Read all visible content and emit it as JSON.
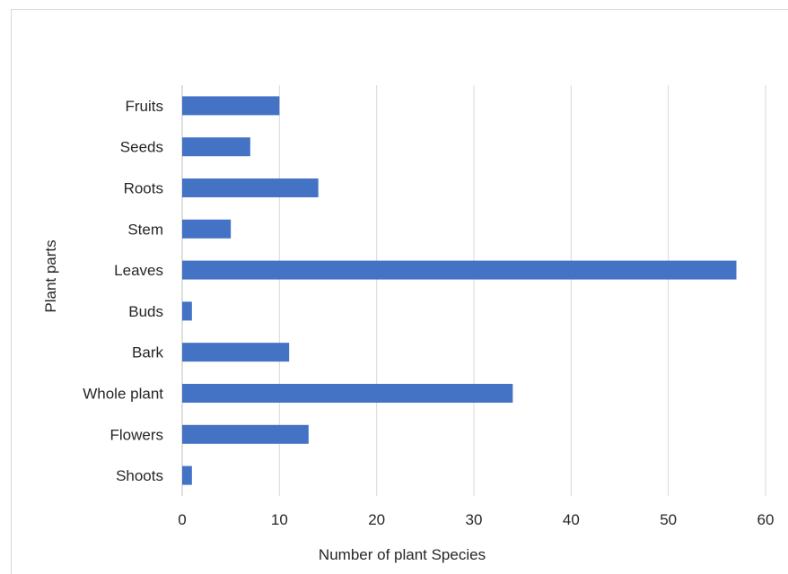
{
  "chart_data": {
    "type": "bar",
    "orientation": "horizontal",
    "categories": [
      "Fruits",
      "Seeds",
      "Roots",
      "Stem",
      "Leaves",
      "Buds",
      "Bark",
      "Whole plant",
      "Flowers",
      "Shoots"
    ],
    "values": [
      10,
      7,
      14,
      5,
      57,
      1,
      11,
      34,
      13,
      1
    ],
    "xlabel": "Number of plant Species",
    "ylabel": "Plant parts",
    "xlim": [
      0,
      60
    ],
    "xticks": [
      0,
      10,
      20,
      30,
      40,
      50,
      60
    ],
    "grid": true,
    "bar_color": "#4472C4",
    "grid_color": "#d9d9d9"
  }
}
